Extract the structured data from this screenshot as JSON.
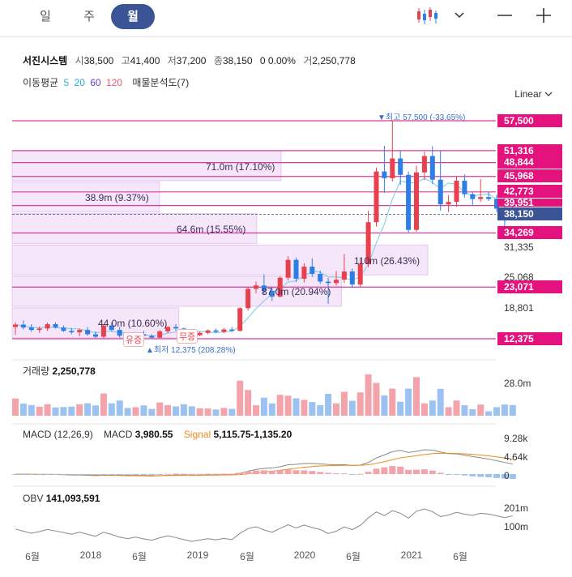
{
  "toolbar": {
    "periods": [
      "일",
      "주",
      "월"
    ],
    "active_period": "월"
  },
  "stock": {
    "name": "서진시스템",
    "open_label": "시",
    "open": "38,500",
    "high_label": "고",
    "high": "41,400",
    "low_label": "저",
    "low": "37,200",
    "close_label": "종",
    "close": "38,150",
    "change": "0 0.00%",
    "volume_label": "거",
    "volume": "2,250,778"
  },
  "indicators": {
    "ma_label": "이동평균",
    "ma_periods": [
      "5",
      "20",
      "60",
      "120"
    ],
    "ma_colors": [
      "#3bb4c6",
      "#22a6e0",
      "#6a3fc8",
      "#e85a6e"
    ],
    "profile_label": "매물분석도(7)"
  },
  "scale": "Linear",
  "price_axis": {
    "labels": [
      "57,500",
      "51,316",
      "48,844",
      "45,968",
      "42,773",
      "39,951",
      "38,150",
      "34,269",
      "31,335",
      "25,068",
      "23,071",
      "18,801",
      "12,375"
    ],
    "current": "38,150"
  },
  "volume_profile": [
    {
      "label": "71.0m (17.10%)"
    },
    {
      "label": "38.9m (9.37%)"
    },
    {
      "label": "64.6m (15.55%)"
    },
    {
      "label": "110m (26.43%)"
    },
    {
      "label": "87.0m (20.94%)"
    },
    {
      "label": "44.0m (10.60%)"
    }
  ],
  "annotations": {
    "high": "▼최고 57,500 (-33.65%)",
    "low": "▲최저 12,375 (208.28%)",
    "event1": "유증",
    "event2": "무증"
  },
  "volume_panel": {
    "label": "거래량",
    "value": "2,250,778",
    "axis": [
      "28.0m"
    ]
  },
  "macd_panel": {
    "label": "MACD (12,26,9)",
    "macd_label": "MACD",
    "macd_value": "3,980.55",
    "signal_label": "Signal",
    "signal_value": "5,115.75-1,135.20",
    "axis": [
      "9.28k",
      "4.64k",
      "0"
    ]
  },
  "obv_panel": {
    "label": "OBV",
    "value": "141,093,591",
    "axis": [
      "201m",
      "100m"
    ]
  },
  "x_axis": [
    "6월",
    "2018",
    "6월",
    "2019",
    "6월",
    "2020",
    "6월",
    "2021",
    "6월"
  ],
  "colors": {
    "up": "#e8414e",
    "down": "#2f7ee8",
    "accent": "#3a5496",
    "tag": "#e3127d",
    "current_tag": "#3a5496"
  },
  "chart_data": {
    "type": "candlestick",
    "candles": [
      [
        14800,
        15800,
        13200,
        15300
      ],
      [
        15300,
        16200,
        14300,
        14700
      ],
      [
        14700,
        15400,
        13800,
        14200
      ],
      [
        14200,
        14900,
        13600,
        14500
      ],
      [
        14500,
        15700,
        14000,
        15400
      ],
      [
        15400,
        15800,
        14500,
        14700
      ],
      [
        14700,
        15100,
        13800,
        14000
      ],
      [
        14000,
        14600,
        13300,
        13700
      ],
      [
        13700,
        14500,
        12900,
        14200
      ],
      [
        14200,
        14800,
        13000,
        13300
      ],
      [
        13300,
        13900,
        12500,
        12800
      ],
      [
        12800,
        15400,
        12500,
        15100
      ],
      [
        15100,
        15800,
        13900,
        14200
      ],
      [
        14200,
        14800,
        12600,
        13000
      ],
      [
        13000,
        13400,
        12375,
        12700
      ],
      [
        12700,
        13500,
        12400,
        13300
      ],
      [
        13300,
        14000,
        12600,
        13000
      ],
      [
        13000,
        13300,
        12400,
        12600
      ],
      [
        12600,
        14200,
        12500,
        13900
      ],
      [
        13900,
        15000,
        13500,
        14800
      ],
      [
        14800,
        15400,
        14000,
        14500
      ],
      [
        14500,
        14700,
        13000,
        13500
      ],
      [
        13500,
        14100,
        12800,
        13100
      ],
      [
        13100,
        13900,
        12900,
        13600
      ],
      [
        13600,
        14300,
        13300,
        14100
      ],
      [
        14100,
        14500,
        13600,
        13800
      ],
      [
        13800,
        14600,
        13500,
        14300
      ],
      [
        14300,
        14800,
        13800,
        14000
      ],
      [
        14000,
        18900,
        13900,
        18700
      ],
      [
        18700,
        23100,
        18200,
        22700
      ],
      [
        22700,
        24200,
        21800,
        23400
      ],
      [
        23400,
        25700,
        21400,
        22300
      ],
      [
        22300,
        23000,
        20200,
        21100
      ],
      [
        21100,
        25400,
        20900,
        25000
      ],
      [
        25000,
        29500,
        24400,
        28700
      ],
      [
        28700,
        29200,
        24100,
        24800
      ],
      [
        24800,
        28000,
        24000,
        27300
      ],
      [
        27300,
        29000,
        25200,
        25800
      ],
      [
        25800,
        26500,
        23700,
        24200
      ],
      [
        24200,
        25000,
        19600,
        23900
      ],
      [
        23900,
        26400,
        23400,
        24600
      ],
      [
        24600,
        29900,
        23900,
        26300
      ],
      [
        26300,
        26900,
        22900,
        23600
      ],
      [
        23600,
        28800,
        23200,
        27800
      ],
      [
        27800,
        38900,
        27200,
        36500
      ],
      [
        36500,
        47800,
        35600,
        47000
      ],
      [
        47000,
        52300,
        42600,
        45600
      ],
      [
        45600,
        57500,
        44900,
        49700
      ],
      [
        49700,
        51300,
        44200,
        46300
      ],
      [
        46300,
        47000,
        34200,
        34900
      ],
      [
        34900,
        48200,
        34500,
        46800
      ],
      [
        46800,
        51100,
        45200,
        50200
      ],
      [
        50200,
        52200,
        44400,
        45300
      ],
      [
        45300,
        51316,
        38900,
        40200
      ],
      [
        40200,
        42100,
        38600,
        40700
      ],
      [
        40700,
        46000,
        39700,
        45100
      ],
      [
        45100,
        46400,
        41600,
        42300
      ],
      [
        42300,
        42700,
        39900,
        41300
      ],
      [
        41300,
        45400,
        40700,
        41700
      ],
      [
        41700,
        42800,
        40900,
        41300
      ],
      [
        41300,
        42200,
        38600,
        39300
      ],
      [
        39300,
        40100,
        35600,
        38150
      ],
      [
        38500,
        41400,
        37200,
        38150
      ]
    ],
    "volume_profile_pct": [
      17.1,
      9.37,
      15.55,
      26.43,
      20.94,
      10.6
    ],
    "volume_profile_values": [
      "71.0m",
      "38.9m",
      "64.6m",
      "110m",
      "87.0m",
      "44.0m"
    ],
    "support_resistance": [
      57500,
      51316,
      48844,
      45968,
      42773,
      39951,
      34269,
      23071,
      12375
    ],
    "y_axis": [
      12375,
      57500
    ]
  }
}
